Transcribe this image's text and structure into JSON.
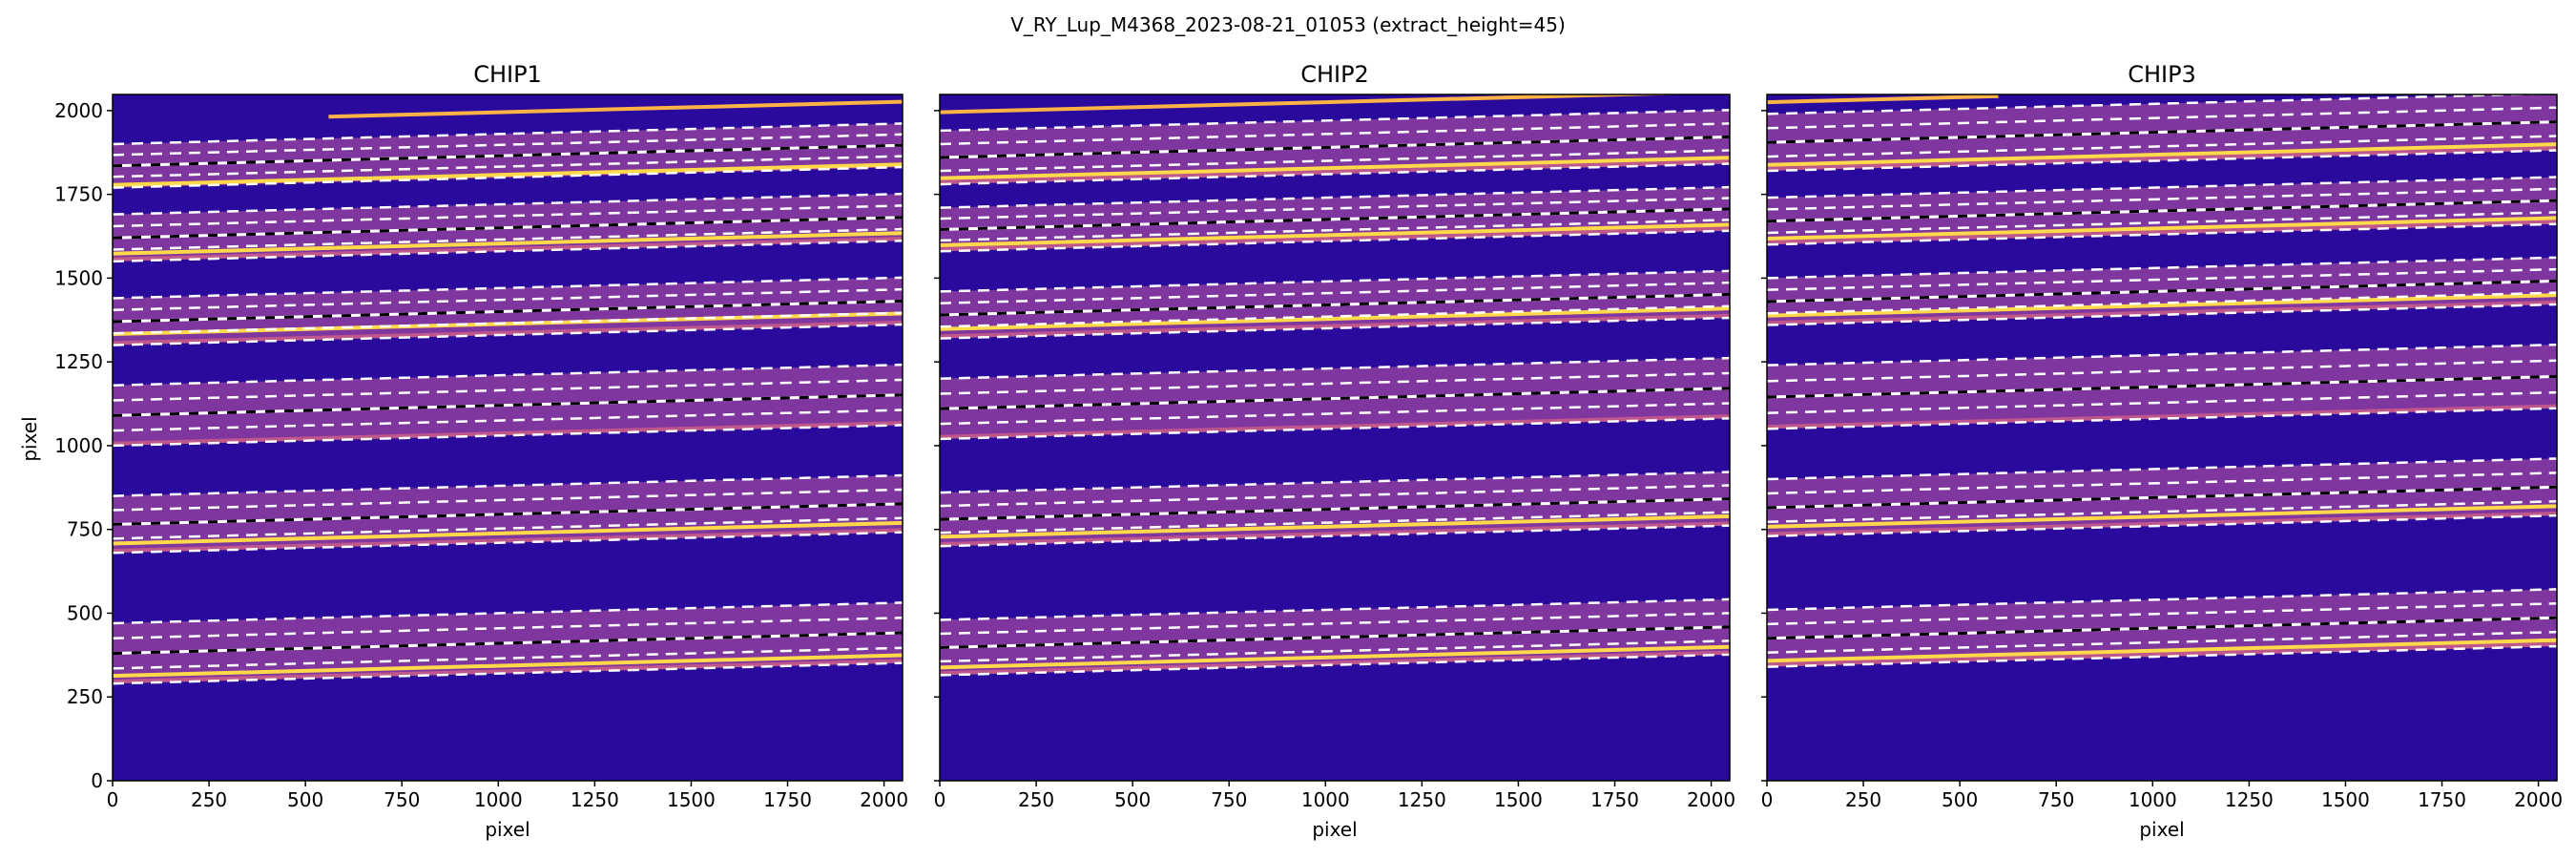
{
  "figure": {
    "suptitle": "V_RY_Lup_M4368_2023-08-21_01053  (extract_height=45)"
  },
  "colors": {
    "background_low": "#2a0a9c",
    "band_mid": "#8e3fa0",
    "band_bright": "#ffd94a",
    "trace_line": "#ffffff",
    "trace_dash_gap": "#000000"
  },
  "chart_data": [
    {
      "type": "heatmap",
      "title": "CHIP1",
      "xlabel": "pixel",
      "ylabel": "pixel",
      "xlim": [
        0,
        2048
      ],
      "ylim": [
        0,
        2048
      ],
      "x_ticks": [
        0,
        250,
        500,
        750,
        1000,
        1250,
        1500,
        1750,
        2000
      ],
      "y_ticks": [
        0,
        250,
        500,
        750,
        1000,
        1250,
        1500,
        1750,
        2000
      ],
      "y_tick_labels_shown": true,
      "traces_slope": 0.03,
      "bright_band_x_range": [
        560,
        2048
      ],
      "bright_band_y": 1965,
      "orders": [
        {
          "bottom": 290,
          "top": 470,
          "center": 305
        },
        {
          "bottom": 680,
          "top": 850,
          "center": 700
        },
        {
          "bottom": 1000,
          "top": 1180,
          "center": null
        },
        {
          "bottom": 1300,
          "top": 1440,
          "center": 1325
        },
        {
          "bottom": 1550,
          "top": 1690,
          "center": 1565
        },
        {
          "bottom": 1770,
          "top": 1900,
          "center": 1770
        }
      ]
    },
    {
      "type": "heatmap",
      "title": "CHIP2",
      "xlabel": "pixel",
      "ylabel": "",
      "xlim": [
        0,
        2048
      ],
      "ylim": [
        0,
        2048
      ],
      "x_ticks": [
        0,
        250,
        500,
        750,
        1000,
        1250,
        1500,
        1750,
        2000
      ],
      "y_ticks": [
        0,
        250,
        500,
        750,
        1000,
        1250,
        1500,
        1750,
        2000
      ],
      "y_tick_labels_shown": false,
      "traces_slope": 0.03,
      "bright_band_x_range": [
        0,
        2048
      ],
      "bright_band_y": 1995,
      "orders": [
        {
          "bottom": 315,
          "top": 480,
          "center": 330
        },
        {
          "bottom": 700,
          "top": 860,
          "center": 720
        },
        {
          "bottom": 1020,
          "top": 1200,
          "center": null
        },
        {
          "bottom": 1320,
          "top": 1460,
          "center": 1340
        },
        {
          "bottom": 1580,
          "top": 1710,
          "center": 1590
        },
        {
          "bottom": 1780,
          "top": 1940,
          "center": 1790
        }
      ]
    },
    {
      "type": "heatmap",
      "title": "CHIP3",
      "xlabel": "pixel",
      "ylabel": "",
      "xlim": [
        0,
        2048
      ],
      "ylim": [
        0,
        2048
      ],
      "x_ticks": [
        0,
        250,
        500,
        750,
        1000,
        1250,
        1500,
        1750,
        2000
      ],
      "y_ticks": [
        0,
        250,
        500,
        750,
        1000,
        1250,
        1500,
        1750,
        2000
      ],
      "y_tick_labels_shown": false,
      "traces_slope": 0.03,
      "bright_band_x_range": [
        0,
        600
      ],
      "bright_band_y": 2025,
      "orders": [
        {
          "bottom": 340,
          "top": 510,
          "center": 350
        },
        {
          "bottom": 730,
          "top": 900,
          "center": 750
        },
        {
          "bottom": 1050,
          "top": 1240,
          "center": null
        },
        {
          "bottom": 1360,
          "top": 1500,
          "center": 1380
        },
        {
          "bottom": 1600,
          "top": 1740,
          "center": 1610
        },
        {
          "bottom": 1820,
          "top": 1990,
          "center": 1830
        }
      ]
    }
  ]
}
